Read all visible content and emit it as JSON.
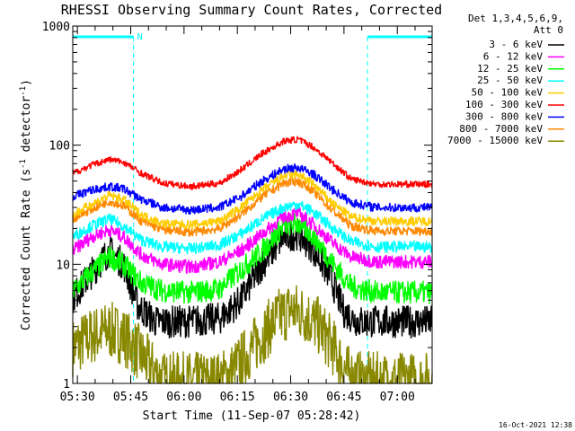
{
  "chart_data": {
    "type": "line",
    "title": "RHESSI Observing Summary Count Rates, Corrected",
    "xlabel": "Start Time (11-Sep-07 05:28:42)",
    "ylabel_parts": [
      "Corrected Count Rate (s",
      "-1",
      " detector",
      "-1",
      ")"
    ],
    "y_scale": "log",
    "ylim": [
      1,
      1000
    ],
    "y_tick_labels": [
      {
        "value": 1,
        "label": "1"
      },
      {
        "value": 10,
        "label": "10"
      },
      {
        "value": 100,
        "label": "100"
      },
      {
        "value": 1000,
        "label": "1000"
      }
    ],
    "x_unit": "minutes after 05:30",
    "xlim": [
      -1.3,
      99.8
    ],
    "x_tick_labels": [
      {
        "value": 0,
        "label": "05:30"
      },
      {
        "value": 15,
        "label": "05:45"
      },
      {
        "value": 30,
        "label": "06:00"
      },
      {
        "value": 45,
        "label": "06:15"
      },
      {
        "value": 60,
        "label": "06:30"
      },
      {
        "value": 75,
        "label": "06:45"
      },
      {
        "value": 90,
        "label": "07:00"
      }
    ],
    "grid": false,
    "legend_position": "outside-right",
    "legend_header": [
      "Det 1,3,4,5,6,9,",
      "Att 0"
    ],
    "night_intervals": [
      [
        -1.3,
        15.8
      ],
      [
        81.6,
        99.8
      ]
    ],
    "saa_label": "N",
    "series": [
      {
        "name": "3 - 6 keV",
        "color": "#000000",
        "noise": 0.14,
        "points": [
          [
            -1.3,
            5.2
          ],
          [
            4,
            8.5
          ],
          [
            9,
            13
          ],
          [
            13,
            10
          ],
          [
            17,
            4.5
          ],
          [
            22,
            3.3
          ],
          [
            30,
            3.3
          ],
          [
            40,
            3.5
          ],
          [
            46,
            5
          ],
          [
            52,
            10
          ],
          [
            58,
            17
          ],
          [
            62,
            18
          ],
          [
            66,
            14
          ],
          [
            71,
            8
          ],
          [
            75,
            4
          ],
          [
            79,
            3.3
          ],
          [
            86,
            3.3
          ],
          [
            99.8,
            3.3
          ]
        ]
      },
      {
        "name": "6 - 12 keV",
        "color": "#ff00ff",
        "noise": 0.06,
        "points": [
          [
            -1.3,
            13
          ],
          [
            4,
            17
          ],
          [
            9,
            19.5
          ],
          [
            13,
            17
          ],
          [
            18,
            12
          ],
          [
            24,
            10
          ],
          [
            32,
            9.5
          ],
          [
            40,
            10.5
          ],
          [
            46,
            13
          ],
          [
            52,
            18
          ],
          [
            58,
            25
          ],
          [
            62,
            27
          ],
          [
            66,
            22
          ],
          [
            72,
            15
          ],
          [
            77,
            11.5
          ],
          [
            84,
            10.5
          ],
          [
            99.8,
            10.5
          ]
        ]
      },
      {
        "name": "12 - 25 keV",
        "color": "#00ff00",
        "noise": 0.1,
        "points": [
          [
            -1.3,
            6
          ],
          [
            4,
            8.5
          ],
          [
            9,
            11.5
          ],
          [
            13,
            10
          ],
          [
            18,
            7
          ],
          [
            24,
            6
          ],
          [
            32,
            5.8
          ],
          [
            40,
            6.2
          ],
          [
            46,
            9
          ],
          [
            52,
            13
          ],
          [
            58,
            21
          ],
          [
            62,
            22
          ],
          [
            66,
            18
          ],
          [
            72,
            10
          ],
          [
            77,
            6.5
          ],
          [
            84,
            5.8
          ],
          [
            99.8,
            5.8
          ]
        ]
      },
      {
        "name": "25 - 50 keV",
        "color": "#00ffff",
        "noise": 0.05,
        "points": [
          [
            -1.3,
            17
          ],
          [
            4,
            21
          ],
          [
            9,
            24
          ],
          [
            13,
            21
          ],
          [
            18,
            16
          ],
          [
            24,
            14
          ],
          [
            32,
            13.5
          ],
          [
            40,
            14.5
          ],
          [
            46,
            18
          ],
          [
            52,
            24
          ],
          [
            58,
            30
          ],
          [
            62,
            32
          ],
          [
            66,
            28
          ],
          [
            72,
            20
          ],
          [
            77,
            15.5
          ],
          [
            84,
            14
          ],
          [
            99.8,
            14
          ]
        ]
      },
      {
        "name": "50 - 100 keV",
        "color": "#ffcc00",
        "noise": 0.04,
        "points": [
          [
            -1.3,
            26
          ],
          [
            4,
            32
          ],
          [
            9,
            38
          ],
          [
            13,
            35
          ],
          [
            18,
            26
          ],
          [
            24,
            22
          ],
          [
            32,
            21.5
          ],
          [
            40,
            23
          ],
          [
            46,
            30
          ],
          [
            52,
            42
          ],
          [
            58,
            55
          ],
          [
            62,
            57
          ],
          [
            66,
            48
          ],
          [
            72,
            32
          ],
          [
            77,
            25
          ],
          [
            84,
            23
          ],
          [
            99.8,
            23
          ]
        ]
      },
      {
        "name": "100 - 300 keV",
        "color": "#ff0000",
        "noise": 0.03,
        "points": [
          [
            -1.3,
            58
          ],
          [
            4,
            68
          ],
          [
            9,
            76
          ],
          [
            13,
            72
          ],
          [
            18,
            58
          ],
          [
            24,
            48
          ],
          [
            32,
            45
          ],
          [
            40,
            48
          ],
          [
            46,
            62
          ],
          [
            52,
            85
          ],
          [
            58,
            108
          ],
          [
            62,
            112
          ],
          [
            66,
            98
          ],
          [
            72,
            70
          ],
          [
            77,
            52
          ],
          [
            84,
            47
          ],
          [
            99.8,
            47
          ]
        ]
      },
      {
        "name": "300 - 800 keV",
        "color": "#0000ff",
        "noise": 0.04,
        "points": [
          [
            -1.3,
            37
          ],
          [
            4,
            42
          ],
          [
            9,
            45
          ],
          [
            13,
            43
          ],
          [
            18,
            35
          ],
          [
            24,
            30
          ],
          [
            32,
            28.5
          ],
          [
            40,
            30
          ],
          [
            46,
            37
          ],
          [
            52,
            50
          ],
          [
            58,
            63
          ],
          [
            62,
            65
          ],
          [
            66,
            58
          ],
          [
            72,
            42
          ],
          [
            77,
            33
          ],
          [
            84,
            30
          ],
          [
            99.8,
            30
          ]
        ]
      },
      {
        "name": "800 - 7000 keV",
        "color": "#ff8800",
        "noise": 0.04,
        "points": [
          [
            -1.3,
            24
          ],
          [
            4,
            29
          ],
          [
            9,
            34
          ],
          [
            13,
            31
          ],
          [
            18,
            23
          ],
          [
            24,
            19.5
          ],
          [
            32,
            18.5
          ],
          [
            40,
            20
          ],
          [
            46,
            26
          ],
          [
            52,
            37
          ],
          [
            58,
            48
          ],
          [
            62,
            50
          ],
          [
            66,
            42
          ],
          [
            72,
            28
          ],
          [
            77,
            21
          ],
          [
            84,
            19
          ],
          [
            99.8,
            19
          ]
        ]
      },
      {
        "name": "7000 - 15000 keV",
        "color": "#888800",
        "noise": 0.25,
        "points": [
          [
            -1.3,
            2
          ],
          [
            4,
            2.5
          ],
          [
            9,
            2.8
          ],
          [
            13,
            2.5
          ],
          [
            16,
            2
          ],
          [
            24,
            1.05
          ],
          [
            40,
            1.05
          ],
          [
            44,
            1.3
          ],
          [
            48,
            1.8
          ],
          [
            52,
            2.5
          ],
          [
            56,
            3.5
          ],
          [
            60,
            4.2
          ],
          [
            64,
            3.8
          ],
          [
            68,
            3
          ],
          [
            72,
            2
          ],
          [
            76,
            1.2
          ],
          [
            80,
            1.05
          ],
          [
            99.8,
            1.05
          ]
        ]
      }
    ],
    "timestamp": "16-Oct-2021 12:38"
  }
}
